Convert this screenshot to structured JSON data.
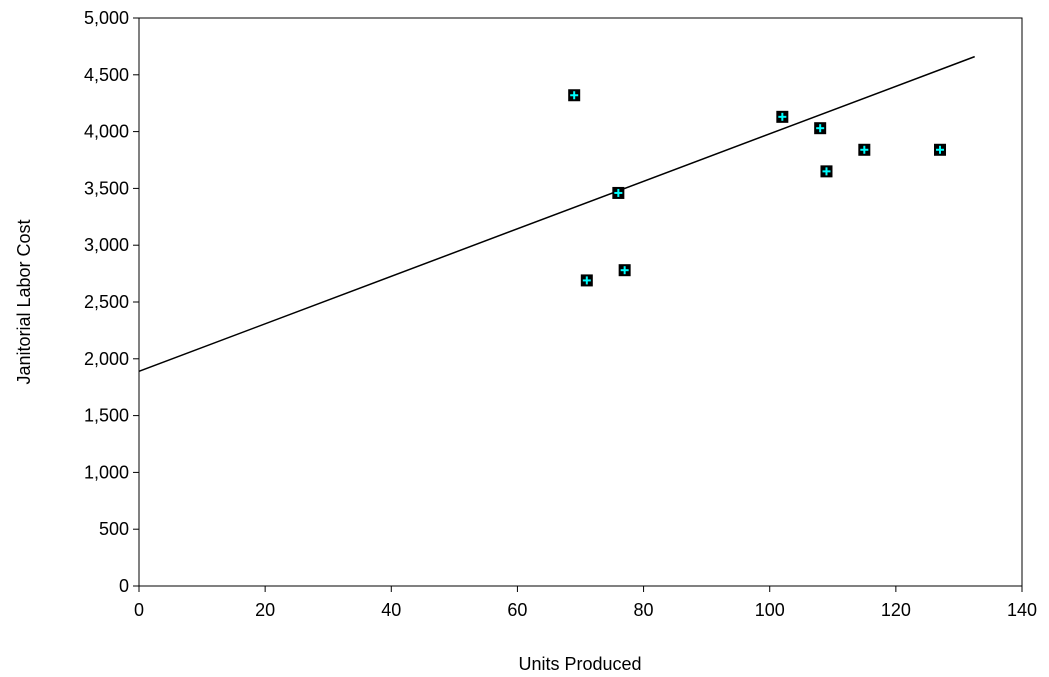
{
  "chart_data": {
    "type": "scatter",
    "title": "",
    "xlabel": "Units Produced",
    "ylabel": "Janitorial Labor Cost",
    "xlim": [
      0,
      140
    ],
    "ylim": [
      0,
      5000
    ],
    "x_ticks": [
      0,
      20,
      40,
      60,
      80,
      100,
      120,
      140
    ],
    "y_ticks": [
      0,
      500,
      1000,
      1500,
      2000,
      2500,
      3000,
      3500,
      4000,
      4500,
      5000
    ],
    "x_tick_labels": [
      "0",
      "20",
      "40",
      "60",
      "80",
      "100",
      "120",
      "140"
    ],
    "y_tick_labels": [
      "0",
      "500",
      "1,000",
      "1,500",
      "2,000",
      "2,500",
      "3,000",
      "3,500",
      "4,000",
      "4,500",
      "5,000"
    ],
    "grid": false,
    "legend": "none",
    "points": [
      {
        "x": 69,
        "y": 4320
      },
      {
        "x": 71,
        "y": 2690
      },
      {
        "x": 76,
        "y": 3460
      },
      {
        "x": 77,
        "y": 2780
      },
      {
        "x": 102,
        "y": 4130
      },
      {
        "x": 108,
        "y": 4030
      },
      {
        "x": 109,
        "y": 3650
      },
      {
        "x": 115,
        "y": 3840
      },
      {
        "x": 127,
        "y": 3840
      }
    ],
    "trendline": {
      "x": [
        0,
        132.5
      ],
      "y": [
        1890,
        4660
      ]
    },
    "colors": {
      "marker_fill": "#00ffff",
      "marker_border": "#000000",
      "line": "#000000"
    }
  }
}
